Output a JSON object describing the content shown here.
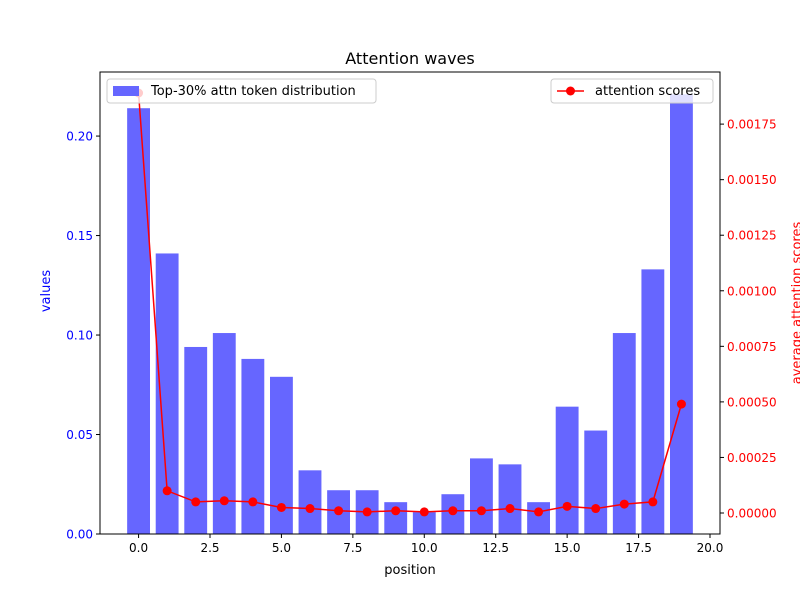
{
  "chart_data": {
    "type": "bar+line",
    "title": "Attention waves",
    "xlabel": "position",
    "ylabel_left": "values",
    "ylabel_right": "average attention scores",
    "xlim": [
      -1.35,
      20.35
    ],
    "ylim_left": [
      0,
      0.2322
    ],
    "ylim_right": [
      -9.45e-05,
      0.0019845
    ],
    "x_ticks": [
      0.0,
      2.5,
      5.0,
      7.5,
      10.0,
      12.5,
      15.0,
      17.5,
      20.0
    ],
    "x_tick_labels": [
      "0.0",
      "2.5",
      "5.0",
      "7.5",
      "10.0",
      "12.5",
      "15.0",
      "17.5",
      "20.0"
    ],
    "y_left_ticks": [
      0.0,
      0.05,
      0.1,
      0.15,
      0.2
    ],
    "y_left_tick_labels": [
      "0.00",
      "0.05",
      "0.10",
      "0.15",
      "0.20"
    ],
    "y_right_ticks": [
      0.0,
      0.00025,
      0.0005,
      0.00075,
      0.001,
      0.00125,
      0.0015,
      0.00175
    ],
    "y_right_tick_labels": [
      "0.00000",
      "0.00025",
      "0.00050",
      "0.00075",
      "0.00100",
      "0.00125",
      "0.00150",
      "0.00175"
    ],
    "grid": false,
    "x": [
      0,
      1,
      2,
      3,
      4,
      5,
      6,
      7,
      8,
      9,
      10,
      11,
      12,
      13,
      14,
      15,
      16,
      17,
      18,
      19
    ],
    "series": [
      {
        "name": "Top-30% attn token distribution",
        "type": "bar",
        "axis": "left",
        "color": "#6666ff",
        "legend_position": "upper-left",
        "values": [
          0.214,
          0.141,
          0.094,
          0.101,
          0.088,
          0.079,
          0.032,
          0.022,
          0.022,
          0.016,
          0.011,
          0.02,
          0.038,
          0.035,
          0.016,
          0.064,
          0.052,
          0.101,
          0.133,
          0.221
        ]
      },
      {
        "name": "attention scores",
        "type": "line",
        "axis": "right",
        "color": "#ff0000",
        "legend_position": "upper-right",
        "values": [
          0.00189,
          0.0001,
          5e-05,
          5.5e-05,
          5e-05,
          2.5e-05,
          2e-05,
          1e-05,
          5e-06,
          1e-05,
          5e-06,
          1e-05,
          1e-05,
          2e-05,
          5e-06,
          3e-05,
          2e-05,
          4e-05,
          5e-05,
          0.00049
        ]
      }
    ]
  }
}
